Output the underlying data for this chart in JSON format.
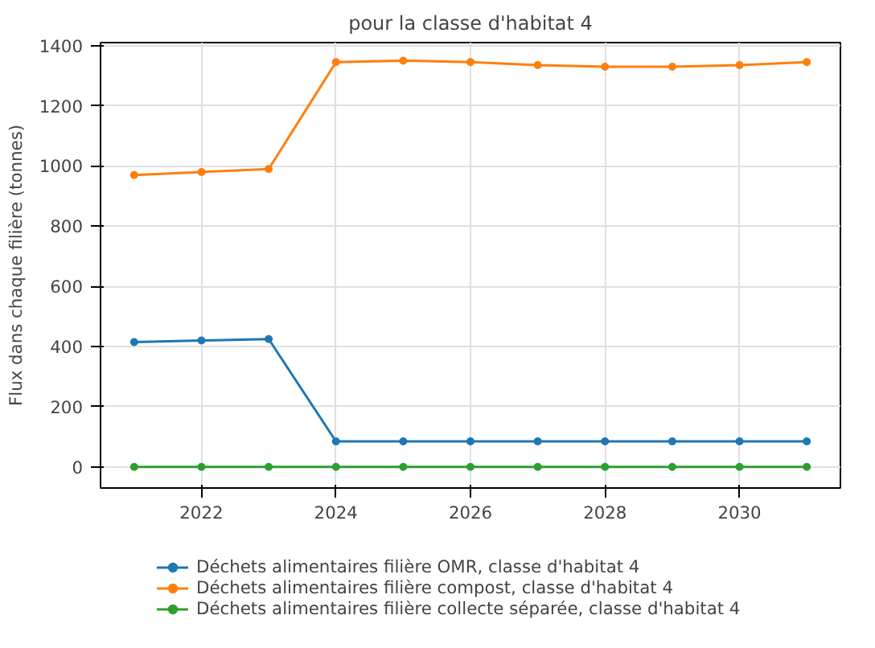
{
  "chart_data": {
    "type": "line",
    "title": "pour la classe d'habitat 4",
    "ylabel": "Flux dans chaque filière (tonnes)",
    "x": [
      2021,
      2022,
      2023,
      2024,
      2025,
      2026,
      2027,
      2028,
      2029,
      2030,
      2031
    ],
    "series": [
      {
        "name": "Déchets alimentaires filière OMR, classe d'habitat 4",
        "color": "#1f77b4",
        "values": [
          415,
          420,
          425,
          85,
          85,
          85,
          85,
          85,
          85,
          85,
          85
        ]
      },
      {
        "name": "Déchets alimentaires filière compost, classe d'habitat 4",
        "color": "#ff7f0e",
        "values": [
          970,
          980,
          990,
          1345,
          1350,
          1345,
          1335,
          1330,
          1330,
          1335,
          1345
        ]
      },
      {
        "name": "Déchets alimentaires filière collecte séparée, classe d'habitat 4",
        "color": "#2ca02c",
        "values": [
          0,
          0,
          0,
          0,
          0,
          0,
          0,
          0,
          0,
          0,
          0
        ]
      }
    ],
    "xlim": [
      2020.5,
      2031.5
    ],
    "xticks": [
      2022,
      2024,
      2026,
      2028,
      2030
    ],
    "ylim": [
      -70,
      1410
    ],
    "yticks": [
      0,
      200,
      400,
      600,
      800,
      1000,
      1200,
      1400
    ],
    "grid": true,
    "legend": "bottom",
    "marker": "circle",
    "line_style": "solid"
  }
}
